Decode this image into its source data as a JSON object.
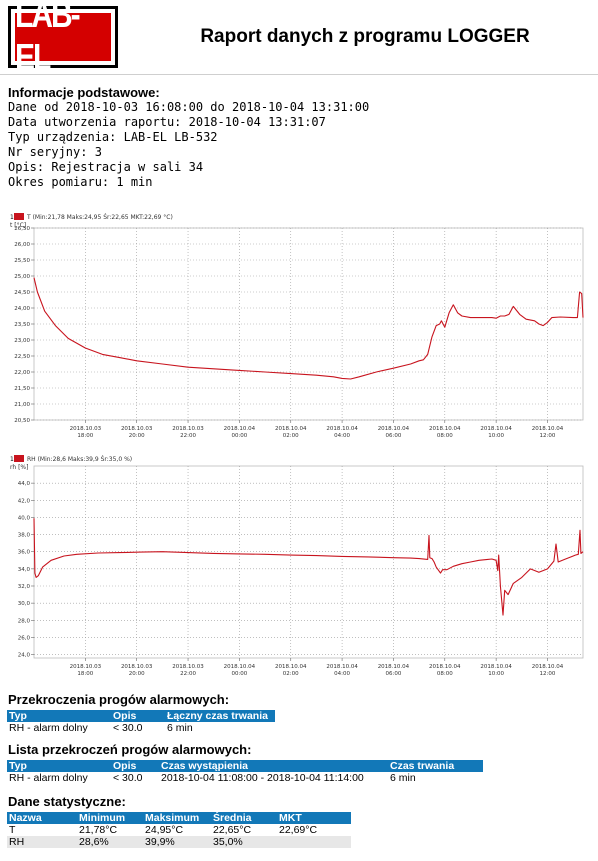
{
  "header": {
    "logo_text": "LAB-EL",
    "title": "Raport danych z programu LOGGER"
  },
  "info": {
    "heading": "Informacje podstawowe:",
    "lines": [
      "Dane od 2018-10-03 16:08:00 do 2018-10-04 13:31:00",
      "Data utworzenia raportu: 2018-10-04 13:31:07",
      "Typ urządzenia: LAB-EL LB-532",
      "Nr seryjny: 3",
      "Opis: Rejestracja w sali 34",
      "Okres pomiaru: 1 min"
    ]
  },
  "colors": {
    "series": "#c8141e",
    "table_header": "#1278b8",
    "logo_red": "#d40000"
  },
  "chart_data": [
    {
      "type": "line",
      "legend_marker": "1",
      "legend": "T (Min:21,78 Maks:24,95 Śr:22,65 MKT:22,69 °C)",
      "ylabel": "t [°C]",
      "ylim": [
        20.5,
        26.5
      ],
      "yticks": [
        "20,50",
        "21,00",
        "21,50",
        "22,00",
        "22,50",
        "23,00",
        "23,50",
        "24,00",
        "24,50",
        "25,00",
        "25,50",
        "26,00",
        "26,50"
      ],
      "xlim": [
        0,
        1283
      ],
      "xticks": [
        {
          "pos": 120,
          "date": "2018.10.03",
          "time": "18:00"
        },
        {
          "pos": 240,
          "date": "2018.10.03",
          "time": "20:00"
        },
        {
          "pos": 360,
          "date": "2018.10.03",
          "time": "22:00"
        },
        {
          "pos": 480,
          "date": "2018.10.04",
          "time": "00:00"
        },
        {
          "pos": 600,
          "date": "2018.10.04",
          "time": "02:00"
        },
        {
          "pos": 720,
          "date": "2018.10.04",
          "time": "04:00"
        },
        {
          "pos": 840,
          "date": "2018.10.04",
          "time": "06:00"
        },
        {
          "pos": 960,
          "date": "2018.10.04",
          "time": "08:00"
        },
        {
          "pos": 1080,
          "date": "2018.10.04",
          "time": "10:00"
        },
        {
          "pos": 1200,
          "date": "2018.10.04",
          "time": "12:00"
        }
      ],
      "series": [
        {
          "name": "T",
          "x": [
            0,
            8,
            25,
            50,
            80,
            120,
            160,
            200,
            240,
            300,
            360,
            420,
            480,
            540,
            600,
            660,
            700,
            720,
            740,
            760,
            800,
            840,
            880,
            900,
            910,
            920,
            930,
            940,
            948,
            952,
            960,
            970,
            980,
            990,
            1000,
            1020,
            1050,
            1070,
            1080,
            1090,
            1100,
            1110,
            1120,
            1135,
            1150,
            1170,
            1180,
            1190,
            1200,
            1210,
            1230,
            1260,
            1270,
            1275,
            1280,
            1283
          ],
          "y": [
            24.95,
            24.5,
            23.9,
            23.45,
            23.05,
            22.75,
            22.55,
            22.45,
            22.35,
            22.25,
            22.15,
            22.1,
            22.05,
            22.0,
            21.95,
            21.9,
            21.85,
            21.8,
            21.78,
            21.85,
            22.0,
            22.12,
            22.25,
            22.35,
            22.38,
            22.55,
            23.1,
            23.45,
            23.5,
            23.6,
            23.4,
            23.85,
            24.1,
            23.85,
            23.75,
            23.7,
            23.7,
            23.7,
            23.68,
            23.75,
            23.75,
            23.8,
            24.05,
            23.8,
            23.65,
            23.6,
            23.5,
            23.45,
            23.55,
            23.7,
            23.72,
            23.7,
            23.7,
            24.5,
            24.45,
            23.7
          ]
        }
      ]
    },
    {
      "type": "line",
      "legend_marker": "1",
      "legend": "RH (Min:28,6 Maks:39,9 Śr:35,0 %)",
      "ylabel": "rh [%]",
      "ylim": [
        23.6,
        46.0
      ],
      "yticks": [
        "24,0",
        "26,0",
        "28,0",
        "30,0",
        "32,0",
        "34,0",
        "36,0",
        "38,0",
        "40,0",
        "42,0",
        "44,0"
      ],
      "xlim": [
        0,
        1283
      ],
      "xticks": [
        {
          "pos": 120,
          "date": "2018.10.03",
          "time": "18:00"
        },
        {
          "pos": 240,
          "date": "2018.10.03",
          "time": "20:00"
        },
        {
          "pos": 360,
          "date": "2018.10.03",
          "time": "22:00"
        },
        {
          "pos": 480,
          "date": "2018.10.04",
          "time": "00:00"
        },
        {
          "pos": 600,
          "date": "2018.10.04",
          "time": "02:00"
        },
        {
          "pos": 720,
          "date": "2018.10.04",
          "time": "04:00"
        },
        {
          "pos": 840,
          "date": "2018.10.04",
          "time": "06:00"
        },
        {
          "pos": 960,
          "date": "2018.10.04",
          "time": "08:00"
        },
        {
          "pos": 1080,
          "date": "2018.10.04",
          "time": "10:00"
        },
        {
          "pos": 1200,
          "date": "2018.10.04",
          "time": "12:00"
        }
      ],
      "series": [
        {
          "name": "RH",
          "x": [
            0,
            2,
            5,
            10,
            20,
            40,
            70,
            100,
            150,
            200,
            250,
            300,
            360,
            420,
            480,
            540,
            600,
            660,
            720,
            780,
            840,
            880,
            900,
            920,
            923,
            925,
            930,
            935,
            940,
            950,
            955,
            965,
            980,
            1000,
            1020,
            1040,
            1060,
            1070,
            1080,
            1084,
            1086,
            1090,
            1096,
            1100,
            1108,
            1120,
            1140,
            1160,
            1180,
            1200,
            1215,
            1220,
            1225,
            1240,
            1255,
            1260,
            1265,
            1272,
            1276,
            1278,
            1283
          ],
          "y": [
            39.9,
            33.5,
            33.0,
            33.2,
            34.2,
            35.0,
            35.5,
            35.7,
            35.85,
            35.9,
            35.95,
            36.0,
            35.9,
            35.8,
            35.75,
            35.7,
            35.6,
            35.55,
            35.45,
            35.4,
            35.3,
            35.25,
            35.2,
            35.1,
            37.9,
            35.3,
            35.2,
            34.8,
            34.2,
            33.5,
            33.9,
            33.9,
            34.3,
            34.6,
            34.8,
            35.0,
            35.1,
            35.15,
            35.0,
            33.8,
            35.6,
            32.0,
            28.6,
            31.5,
            31.0,
            32.3,
            33.0,
            34.0,
            33.6,
            34.0,
            34.9,
            36.9,
            34.8,
            35.1,
            35.4,
            35.5,
            35.6,
            35.7,
            38.5,
            35.8,
            36.0
          ]
        }
      ]
    }
  ],
  "alarms": {
    "title": "Przekroczenia progów alarmowych:",
    "headers": [
      "Typ",
      "Opis",
      "Łączny czas trwania"
    ],
    "rows": [
      [
        "RH - alarm dolny",
        "< 30.0",
        "6 min"
      ]
    ]
  },
  "alarm_list": {
    "title": "Lista przekroczeń progów alarmowych:",
    "headers": [
      "Typ",
      "Opis",
      "Czas wystąpienia",
      "Czas trwania"
    ],
    "rows": [
      [
        "RH - alarm dolny",
        "< 30.0",
        "2018-10-04 11:08:00 - 2018-10-04 11:14:00",
        "6 min"
      ]
    ]
  },
  "stats": {
    "title": "Dane statystyczne:",
    "headers": [
      "Nazwa",
      "Minimum",
      "Maksimum",
      "Średnia",
      "MKT"
    ],
    "rows": [
      [
        "T",
        "21,78°C",
        "24,95°C",
        "22,65°C",
        "22,69°C"
      ],
      [
        "RH",
        "28,6%",
        "39,9%",
        "35,0%",
        ""
      ]
    ]
  }
}
